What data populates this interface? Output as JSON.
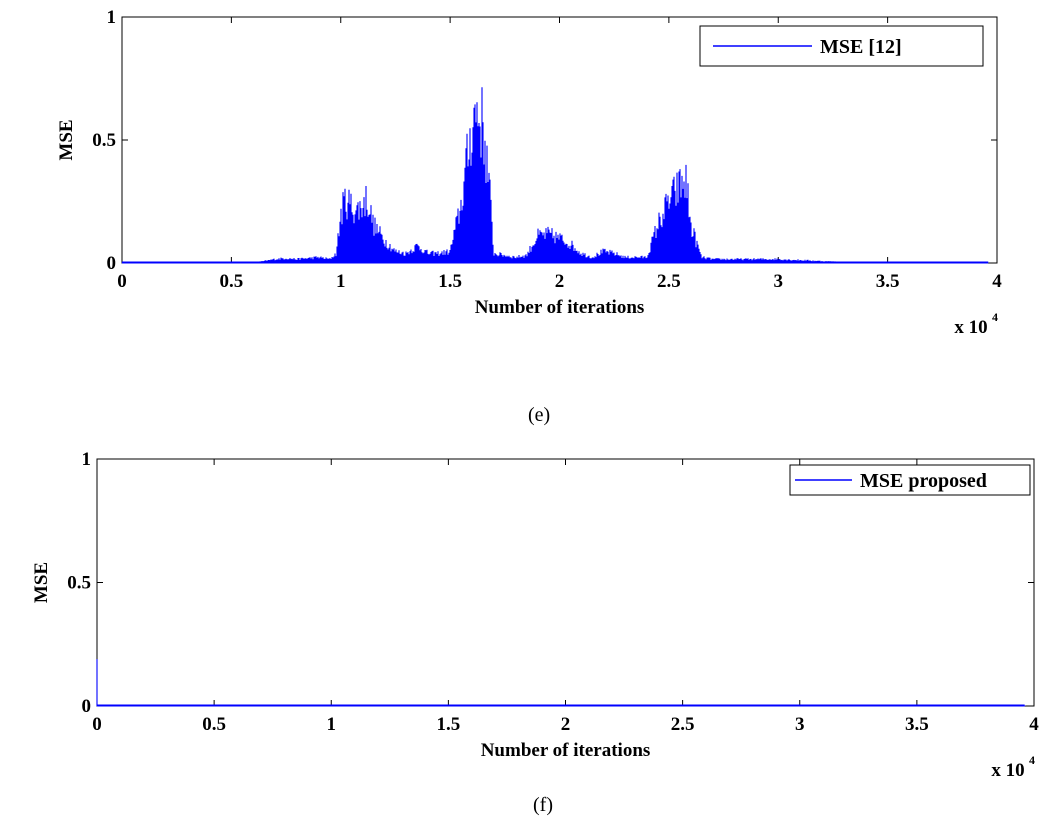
{
  "chart_data": [
    {
      "type": "line",
      "panel_label": "(e)",
      "xlabel": "Number of iterations",
      "ylabel": "MSE",
      "x_multiplier_label": "x 10",
      "x_multiplier_exponent": "4",
      "xlim": [
        0,
        4
      ],
      "ylim": [
        0,
        1
      ],
      "x_ticks": [
        "0",
        "0.5",
        "1",
        "1.5",
        "2",
        "2.5",
        "3",
        "3.5",
        "4"
      ],
      "y_ticks": [
        "0",
        "0.5",
        "1"
      ],
      "x_tick_values": [
        0,
        0.5,
        1,
        1.5,
        2,
        2.5,
        3,
        3.5,
        4
      ],
      "y_tick_values": [
        0,
        0.5,
        1
      ],
      "legend_position": "top-right",
      "series": [
        {
          "name": "MSE [12]",
          "color": "#0000ff",
          "x_end": 3.96,
          "envelope": [
            [
              0.0,
              0.002
            ],
            [
              0.6,
              0.002
            ],
            [
              0.65,
              0.01
            ],
            [
              0.7,
              0.02
            ],
            [
              0.75,
              0.025
            ],
            [
              0.8,
              0.02
            ],
            [
              0.85,
              0.025
            ],
            [
              0.9,
              0.03
            ],
            [
              0.95,
              0.02
            ],
            [
              0.98,
              0.05
            ],
            [
              1.0,
              0.25
            ],
            [
              1.02,
              0.33
            ],
            [
              1.05,
              0.3
            ],
            [
              1.07,
              0.27
            ],
            [
              1.1,
              0.3
            ],
            [
              1.12,
              0.34
            ],
            [
              1.15,
              0.2
            ],
            [
              1.2,
              0.12
            ],
            [
              1.25,
              0.06
            ],
            [
              1.3,
              0.05
            ],
            [
              1.35,
              0.09
            ],
            [
              1.4,
              0.05
            ],
            [
              1.45,
              0.05
            ],
            [
              1.5,
              0.06
            ],
            [
              1.55,
              0.3
            ],
            [
              1.6,
              0.72
            ],
            [
              1.62,
              0.8
            ],
            [
              1.65,
              0.72
            ],
            [
              1.68,
              0.4
            ],
            [
              1.7,
              0.05
            ],
            [
              1.75,
              0.04
            ],
            [
              1.8,
              0.03
            ],
            [
              1.85,
              0.04
            ],
            [
              1.88,
              0.1
            ],
            [
              1.9,
              0.14
            ],
            [
              1.95,
              0.15
            ],
            [
              2.0,
              0.13
            ],
            [
              2.05,
              0.1
            ],
            [
              2.1,
              0.05
            ],
            [
              2.15,
              0.03
            ],
            [
              2.2,
              0.06
            ],
            [
              2.25,
              0.05
            ],
            [
              2.3,
              0.03
            ],
            [
              2.4,
              0.03
            ],
            [
              2.45,
              0.2
            ],
            [
              2.5,
              0.32
            ],
            [
              2.55,
              0.4
            ],
            [
              2.58,
              0.43
            ],
            [
              2.6,
              0.2
            ],
            [
              2.65,
              0.03
            ],
            [
              2.7,
              0.02
            ],
            [
              2.8,
              0.02
            ],
            [
              3.0,
              0.02
            ],
            [
              3.2,
              0.01
            ],
            [
              3.3,
              0.005
            ],
            [
              3.96,
              0.002
            ]
          ]
        }
      ]
    },
    {
      "type": "line",
      "panel_label": "(f)",
      "xlabel": "Number of iterations",
      "ylabel": "MSE",
      "x_multiplier_label": "x 10",
      "x_multiplier_exponent": "4",
      "xlim": [
        0,
        4
      ],
      "ylim": [
        0,
        1
      ],
      "x_ticks": [
        "0",
        "0.5",
        "1",
        "1.5",
        "2",
        "2.5",
        "3",
        "3.5",
        "4"
      ],
      "y_ticks": [
        "0",
        "0.5",
        "1"
      ],
      "x_tick_values": [
        0,
        0.5,
        1,
        1.5,
        2,
        2.5,
        3,
        3.5,
        4
      ],
      "y_tick_values": [
        0,
        0.5,
        1
      ],
      "legend_position": "top-right",
      "series": [
        {
          "name": "MSE proposed",
          "color": "#0000ff",
          "x_end": 3.96,
          "envelope": [
            [
              0.0,
              0.32
            ],
            [
              0.003,
              0.003
            ],
            [
              0.5,
              0.002
            ],
            [
              1.0,
              0.002
            ],
            [
              2.0,
              0.002
            ],
            [
              3.0,
              0.002
            ],
            [
              3.96,
              0.002
            ]
          ]
        }
      ]
    }
  ]
}
